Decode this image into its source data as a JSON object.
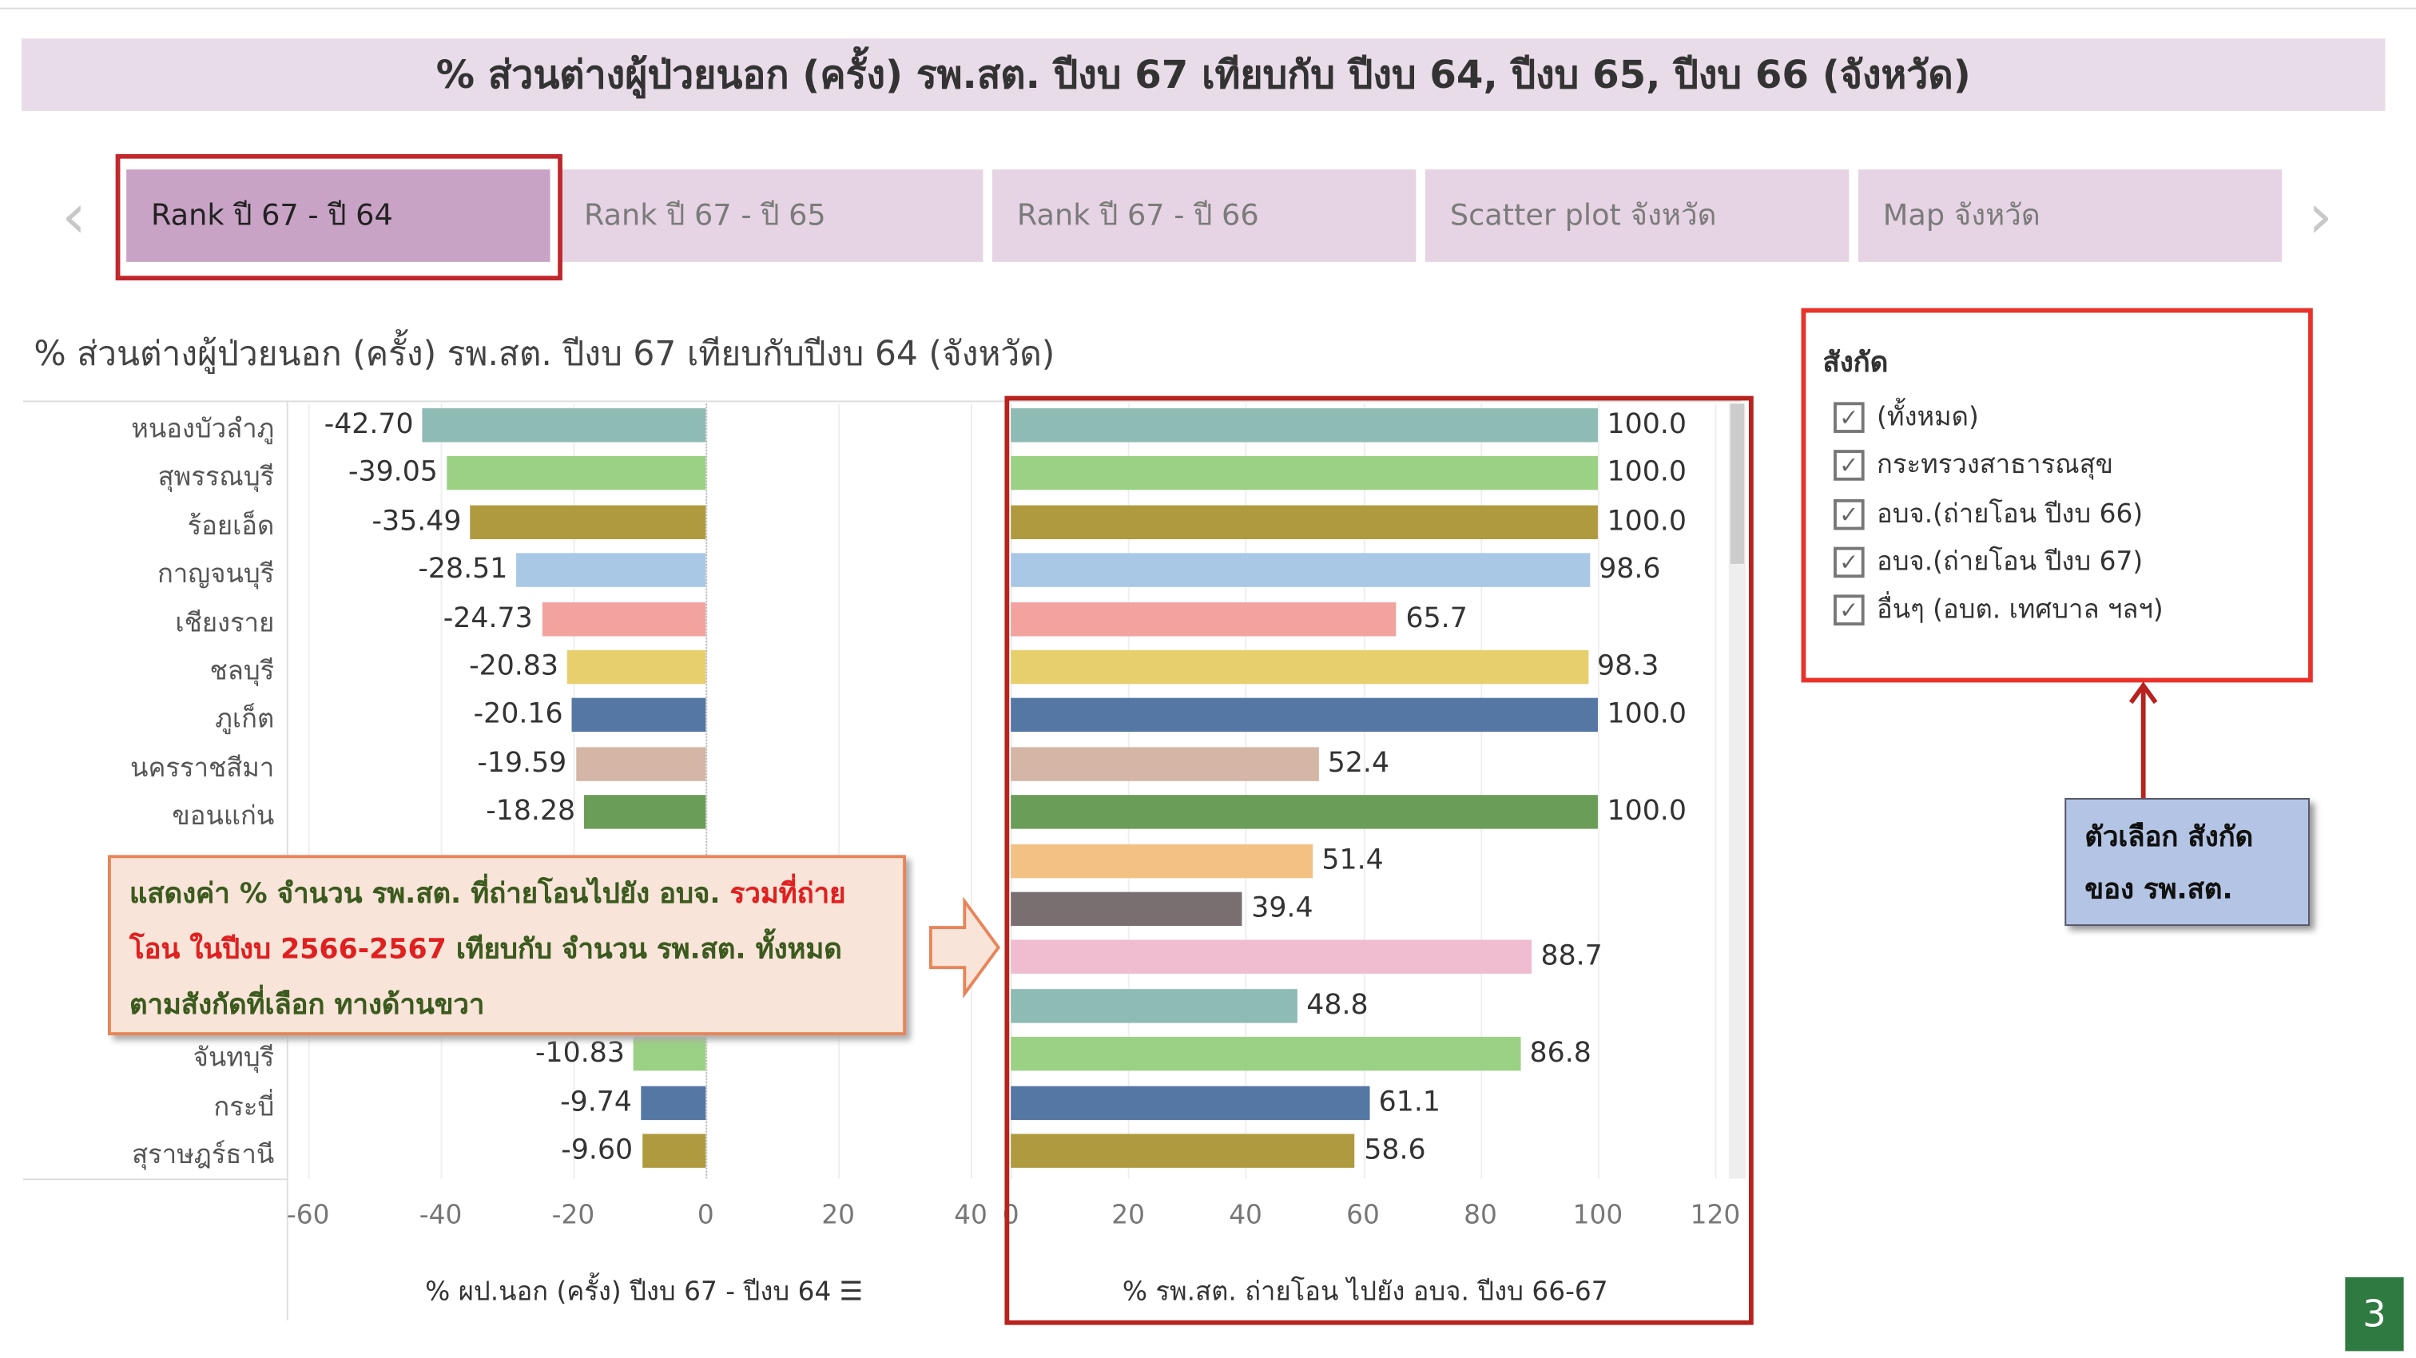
{
  "title": "% ส่วนต่างผู้ป่วยนอก (ครั้ง) รพ.สต. ปีงบ 67 เทียบกับ ปีงบ 64, ปีงบ 65, ปีงบ 66 (จังหวัด)",
  "tabs": [
    {
      "label": "Rank ปี 67 - ปี 64",
      "selected": true
    },
    {
      "label": "Rank ปี 67 - ปี 65",
      "selected": false
    },
    {
      "label": "Rank ปี 67 - ปี 66",
      "selected": false
    },
    {
      "label": "Scatter plot จังหวัด",
      "selected": false
    },
    {
      "label": "Map จังหวัด",
      "selected": false
    }
  ],
  "nav": {
    "prev": "‹",
    "next": "›"
  },
  "accent_colors": {
    "highlight_outline": "#c0282d",
    "filter_outline": "#e8322a",
    "page_badge": "#2f7a40"
  },
  "chart_data": [
    {
      "type": "bar",
      "orientation": "horizontal",
      "title": "% ส่วนต่างผู้ป่วยนอก (ครั้ง) รพ.สต. ปีงบ 67 เทียบกับปีงบ 64 (จังหวัด)",
      "xlabel": "% ผป.นอก (ครั้ง) ปีงบ 67 - ปีงบ 64",
      "xlim": [
        -60,
        40
      ],
      "ticks": [
        -60,
        -40,
        -20,
        0,
        20,
        40
      ],
      "categories": [
        "หนองบัวลำภู",
        "สุพรรณบุรี",
        "ร้อยเอ็ด",
        "กาญจนบุรี",
        "เชียงราย",
        "ชลบุรี",
        "ภูเก็ต",
        "นครราชสีมา",
        "ขอนแก่น",
        "",
        "",
        "",
        "",
        "จันทบุรี",
        "กระบี่",
        "สุราษฎร์ธานี"
      ],
      "values": [
        -42.7,
        -39.05,
        -35.49,
        -28.51,
        -24.73,
        -20.83,
        -20.16,
        -19.59,
        -18.28,
        null,
        null,
        null,
        null,
        -10.83,
        -9.74,
        -9.6
      ],
      "colors": [
        "#8fbbb5",
        "#9bd184",
        "#b09a3f",
        "#a9c8e6",
        "#f2a3a0",
        "#e8cf6e",
        "#5577a4",
        "#d4b5a6",
        "#6a9e58",
        "#f4c185",
        "#7a6f70",
        "#efbcd0",
        "#8fbbb5",
        "#9bd184",
        "#5577a4",
        "#b09a3f"
      ]
    },
    {
      "type": "bar",
      "orientation": "horizontal",
      "xlabel": "% รพ.สต. ถ่ายโอน ไปยัง อบจ. ปีงบ 66-67",
      "xlim": [
        0,
        120
      ],
      "ticks": [
        0,
        20,
        40,
        60,
        80,
        100,
        120
      ],
      "values": [
        100.0,
        100.0,
        100.0,
        98.6,
        65.7,
        98.3,
        100.0,
        52.4,
        100.0,
        51.4,
        39.4,
        88.7,
        48.8,
        86.8,
        61.1,
        58.6
      ]
    }
  ],
  "filter": {
    "title": "สังกัด",
    "items": [
      {
        "label": "(ทั้งหมด)",
        "checked": true
      },
      {
        "label": "กระทรวงสาธารณสุข",
        "checked": true
      },
      {
        "label": "อบจ.(ถ่ายโอน ปีงบ 66)",
        "checked": true
      },
      {
        "label": "อบจ.(ถ่ายโอน ปีงบ 67)",
        "checked": true
      },
      {
        "label": "อื่นๆ (อบต. เทศบาล ฯลฯ)",
        "checked": true
      }
    ]
  },
  "note": {
    "line1": "ตัวเลือก สังกัด",
    "line2": "ของ รพ.สต."
  },
  "callout": {
    "part1": "แสดงค่า % จำนวน รพ.สต. ที่ถ่ายโอนไปยัง อบจ. ",
    "highlight": "รวมที่ถ่ายโอน ในปีงบ 2566-2567",
    "part2": " เทียบกับ จำนวน รพ.สต. ทั้งหมด ตามสังกัดที่เลือก ทางด้านขวา"
  },
  "sort_icon": "sort-descending-icon",
  "page_number": "3"
}
